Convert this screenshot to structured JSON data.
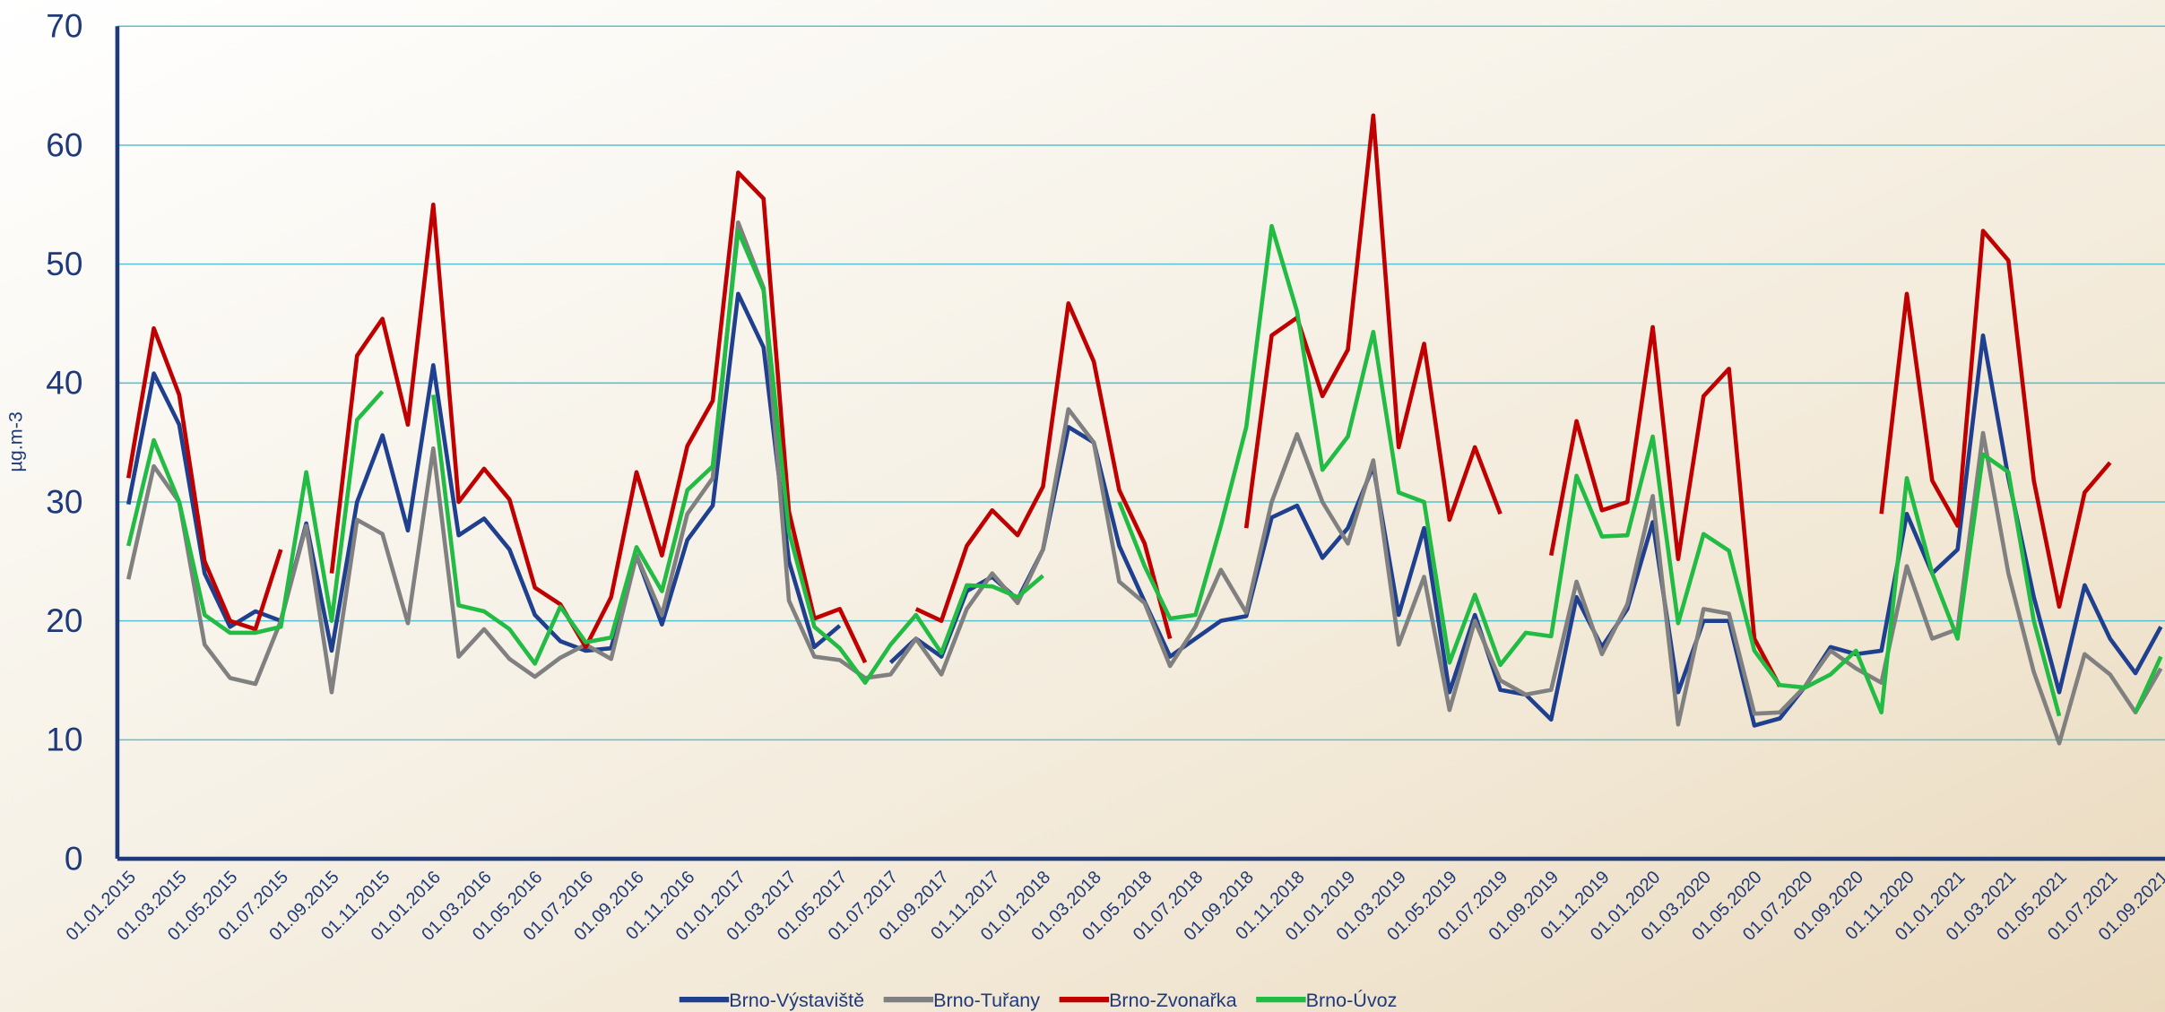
{
  "chart_data": {
    "type": "line",
    "y_label": "µg.m-3",
    "categories": [
      "01.01.2015",
      null,
      "01.03.2015",
      null,
      "01.05.2015",
      null,
      "01.07.2015",
      null,
      "01.09.2015",
      null,
      "01.11.2015",
      null,
      "01.01.2016",
      null,
      "01.03.2016",
      null,
      "01.05.2016",
      null,
      "01.07.2016",
      null,
      "01.09.2016",
      null,
      "01.11.2016",
      null,
      "01.01.2017",
      null,
      "01.03.2017",
      null,
      "01.05.2017",
      null,
      "01.07.2017",
      null,
      "01.09.2017",
      null,
      "01.11.2017",
      null,
      "01.01.2018",
      null,
      "01.03.2018",
      null,
      "01.05.2018",
      null,
      "01.07.2018",
      null,
      "01.09.2018",
      null,
      "01.11.2018",
      null,
      "01.01.2019",
      null,
      "01.03.2019",
      null,
      "01.05.2019",
      null,
      "01.07.2019",
      null,
      "01.09.2019",
      null,
      "01.11.2019",
      null,
      "01.01.2020",
      null,
      "01.03.2020",
      null,
      "01.05.2020",
      null,
      "01.07.2020",
      null,
      "01.09.2020",
      null,
      "01.11.2020",
      null,
      "01.01.2021",
      null,
      "01.03.2021",
      null,
      "01.05.2021",
      null,
      "01.07.2021",
      null,
      "01.09.2021"
    ],
    "series": [
      {
        "name": "Brno-Výstaviště",
        "color": "#1f3f8f",
        "values": [
          29.8,
          40.8,
          36.5,
          24,
          19.5,
          20.8,
          20,
          28.2,
          17.5,
          30,
          35.6,
          27.6,
          41.5,
          27.2,
          28.6,
          26,
          20.5,
          18.3,
          17.5,
          17.7,
          25.5,
          19.7,
          26.8,
          29.7,
          47.5,
          43,
          25,
          17.8,
          19.6,
          null,
          16.5,
          18.5,
          17,
          22.5,
          23.7,
          21.8,
          26,
          36.3,
          35,
          26.3,
          21.6,
          17,
          18.5,
          20,
          20.4,
          28.7,
          29.7,
          25.3,
          27.8,
          33,
          20.5,
          27.8,
          14,
          20.5,
          14.2,
          13.8,
          11.7,
          22,
          17.8,
          21,
          28.3,
          14,
          20,
          20,
          11.2,
          11.8,
          14.5,
          17.8,
          17.2,
          17.5,
          29,
          24,
          26,
          44,
          32,
          22,
          14,
          23,
          18.5,
          15.6,
          19.5
        ]
      },
      {
        "name": "Brno-Tuřany",
        "color": "#808080",
        "values": [
          23.5,
          33,
          30,
          18,
          15.2,
          14.7,
          20,
          28,
          14,
          28.5,
          27.3,
          19.8,
          34.5,
          17,
          19.3,
          16.8,
          15.3,
          16.9,
          18,
          16.8,
          25.5,
          20.5,
          29,
          32,
          53.5,
          48,
          21.7,
          17,
          16.7,
          15.2,
          15.5,
          18.5,
          15.5,
          21,
          24,
          21.5,
          26,
          37.8,
          35,
          23.3,
          21.5,
          16.2,
          19.5,
          24.3,
          20.7,
          30,
          35.7,
          30,
          26.5,
          33.5,
          18,
          23.7,
          12.5,
          20,
          15,
          13.8,
          14.2,
          23.3,
          17.2,
          21.4,
          30.5,
          11.3,
          21,
          20.6,
          12.2,
          12.3,
          14.5,
          17.5,
          16,
          14.8,
          24.6,
          18.5,
          19.3,
          35.8,
          24,
          15.7,
          9.7,
          17.2,
          15.5,
          12.3,
          16
        ]
      },
      {
        "name": "Brno-Zvonařka",
        "color": "#c00000",
        "values": [
          32,
          44.6,
          39,
          25,
          20,
          19.3,
          26,
          null,
          24,
          42.3,
          45.4,
          36.5,
          55,
          30,
          32.8,
          30.2,
          22.8,
          21.4,
          17.8,
          22,
          32.5,
          25.5,
          34.7,
          38.5,
          57.7,
          55.5,
          29.2,
          20.2,
          21,
          16.5,
          null,
          21,
          20,
          26.3,
          29.3,
          27.2,
          31.3,
          46.7,
          41.8,
          31,
          26.5,
          18.5,
          null,
          null,
          27.8,
          44,
          45.5,
          38.9,
          42.8,
          62.5,
          34.6,
          43.3,
          28.5,
          34.6,
          29,
          null,
          25.5,
          36.8,
          29.3,
          30,
          44.7,
          25.2,
          38.9,
          41.2,
          18.5,
          14.5,
          null,
          null,
          null,
          29,
          47.5,
          31.8,
          28,
          52.8,
          50.3,
          31.8,
          21.2,
          30.8,
          33.3,
          null,
          null
        ]
      },
      {
        "name": "Brno-Úvoz",
        "color": "#22bb44",
        "values": [
          26.3,
          35.2,
          30,
          20.5,
          19,
          19,
          19.5,
          32.5,
          20,
          36.9,
          39.3,
          null,
          39,
          21.3,
          20.8,
          19.3,
          16.4,
          21.2,
          18.2,
          18.6,
          26.2,
          22.5,
          31,
          33,
          52.8,
          47.8,
          27.5,
          19.5,
          17.7,
          14.8,
          18,
          20.5,
          17.3,
          23,
          22.9,
          22,
          23.8,
          null,
          null,
          30,
          24.6,
          20.2,
          20.5,
          28,
          36.3,
          53.2,
          46,
          32.7,
          35.5,
          44.3,
          30.8,
          30,
          16.5,
          22.2,
          16.3,
          19,
          18.7,
          32.2,
          27.1,
          27.2,
          35.5,
          19.8,
          27.3,
          25.9,
          17.5,
          14.6,
          14.4,
          15.5,
          17.5,
          12.3,
          32,
          24,
          18.5,
          34,
          32.5,
          20,
          12,
          null,
          null,
          12.3,
          17
        ]
      }
    ],
    "ylim": [
      0,
      70
    ],
    "yticks": [
      0,
      10,
      20,
      30,
      40,
      50,
      60,
      70
    ],
    "grid": true,
    "legend": "bottom"
  }
}
